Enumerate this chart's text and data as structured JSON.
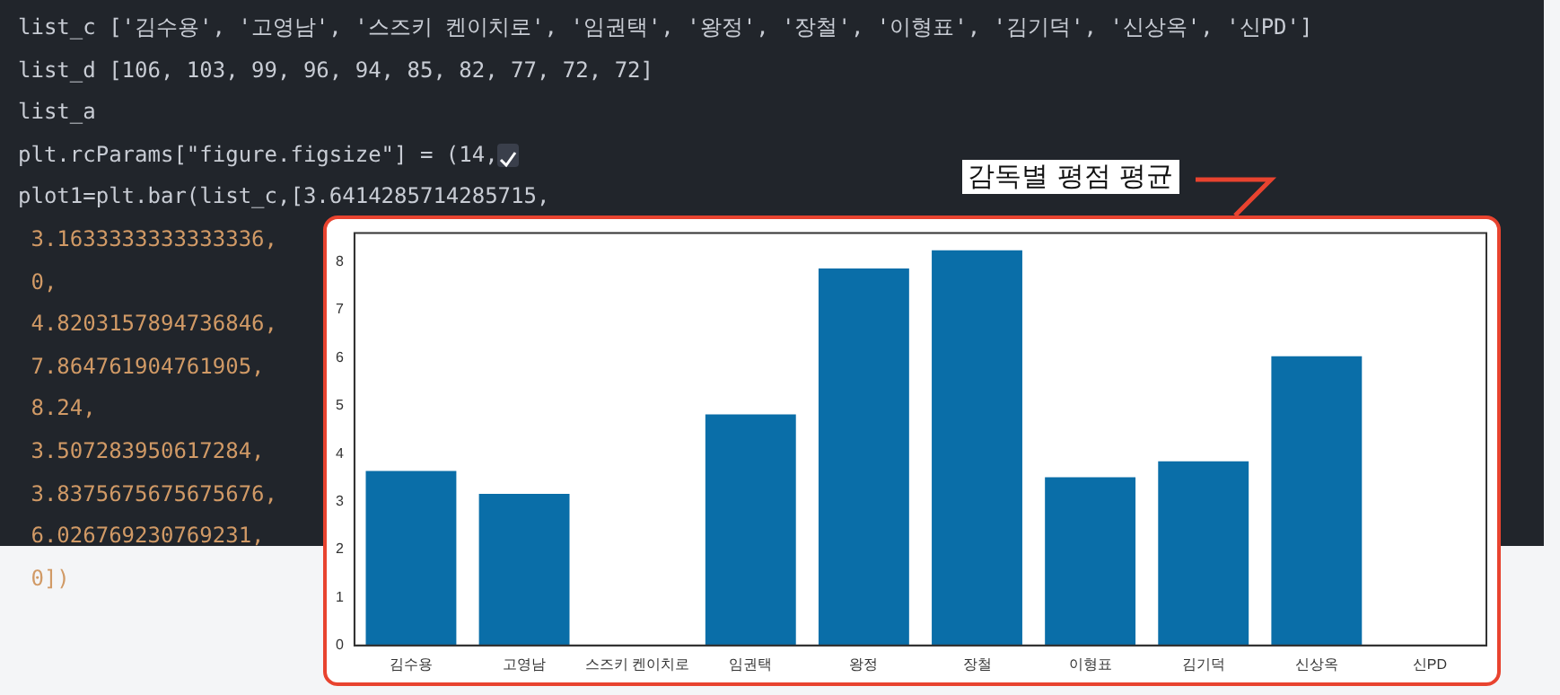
{
  "chart_data": {
    "type": "bar",
    "title": "감독별 평점 평균",
    "categories": [
      "김수용",
      "고영남",
      "스즈키 켄이치로",
      "임권택",
      "왕정",
      "장철",
      "이형표",
      "김기덕",
      "신상옥",
      "신PD"
    ],
    "values": [
      3.64,
      3.16,
      0,
      4.82,
      7.86,
      8.24,
      3.51,
      3.84,
      6.03,
      0
    ],
    "color": "#0a6ea8",
    "ylim": [
      0,
      8.6
    ],
    "yticks": [
      0,
      1,
      2,
      3,
      4,
      5,
      6,
      7,
      8
    ],
    "grid": false,
    "legend": false,
    "annotations": [
      "list_c ['김수용', '고영남', '스즈키 켄이치로', '임권택', '왕정', '장철', '이형표', '김기덕', '신상옥', '신PD']",
      "list_d [106, 103, 99, 96, 94, 85, 82, 77, 72, 72]",
      "list_a",
      "plt.rcParams[\"figure.figsize\"] = (14,",
      "plot1=plt.bar(list_c,[3.6414285714285715,",
      " 3.1633333333333336,",
      " 0,",
      " 4.8203157894736846,",
      " 7.864761904761905,",
      " 8.24,",
      " 3.507283950617284,",
      " 3.8375675675675676,",
      " 6.026769230769231,",
      " 0])"
    ]
  }
}
